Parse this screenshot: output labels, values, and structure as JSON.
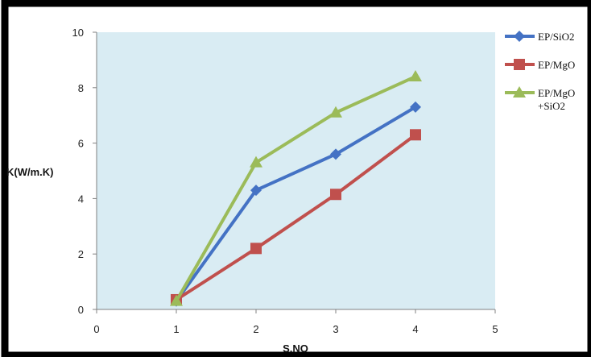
{
  "chart_data": {
    "type": "line",
    "title": "",
    "xlabel": "S.NO",
    "ylabel": "K(W/m.K)",
    "xlim": [
      0,
      5
    ],
    "ylim": [
      0,
      10
    ],
    "x_ticks": [
      "0",
      "1",
      "2",
      "3",
      "4",
      "5"
    ],
    "y_ticks": [
      "0",
      "2",
      "4",
      "6",
      "8",
      "10"
    ],
    "grid": false,
    "plot_background": "#d9ecf3",
    "legend_position": "right",
    "series": [
      {
        "name": "EP/SiO2",
        "name_lines": [
          "EP/SiO2"
        ],
        "color": "#4472c4",
        "marker": "diamond",
        "x": [
          1,
          2,
          3,
          4
        ],
        "y": [
          0.3,
          4.3,
          5.6,
          7.3
        ]
      },
      {
        "name": "EP/MgO",
        "name_lines": [
          "EP/MgO"
        ],
        "color": "#c0504d",
        "marker": "square",
        "x": [
          1,
          2,
          3,
          4
        ],
        "y": [
          0.35,
          2.2,
          4.15,
          6.3
        ]
      },
      {
        "name": "EP/MgO +SiO2",
        "name_lines": [
          "EP/MgO",
          "+SiO2"
        ],
        "color": "#9bbb59",
        "marker": "triangle",
        "x": [
          1,
          2,
          3,
          4
        ],
        "y": [
          0.3,
          5.3,
          7.1,
          8.4
        ]
      }
    ]
  }
}
